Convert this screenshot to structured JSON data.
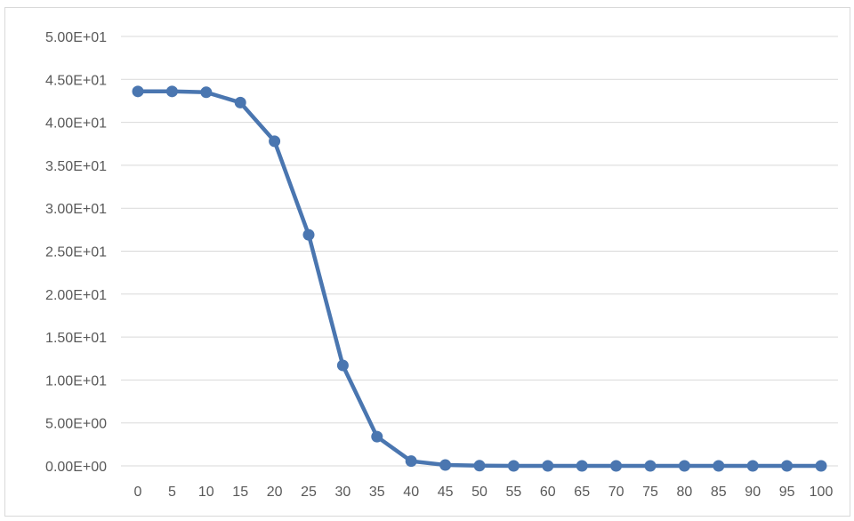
{
  "chart_data": {
    "type": "line",
    "title": "",
    "xlabel": "",
    "ylabel": "",
    "x": [
      0,
      5,
      10,
      15,
      20,
      25,
      30,
      35,
      40,
      45,
      50,
      55,
      60,
      65,
      70,
      75,
      80,
      85,
      90,
      95,
      100
    ],
    "x_tick_labels": [
      "0",
      "5",
      "10",
      "15",
      "20",
      "25",
      "30",
      "35",
      "40",
      "45",
      "50",
      "55",
      "60",
      "65",
      "70",
      "75",
      "80",
      "85",
      "90",
      "95",
      "100"
    ],
    "ylim": [
      0,
      50
    ],
    "y_ticks": [
      0,
      5,
      10,
      15,
      20,
      25,
      30,
      35,
      40,
      45,
      50
    ],
    "y_tick_labels": [
      "0.00E+00",
      "5.00E+00",
      "1.00E+01",
      "1.50E+01",
      "2.00E+01",
      "2.50E+01",
      "3.00E+01",
      "3.50E+01",
      "4.00E+01",
      "4.50E+01",
      "5.00E+01"
    ],
    "grid": true,
    "legend": "none",
    "series": [
      {
        "color": "#4a76b0",
        "values": [
          43.6,
          43.6,
          43.5,
          42.3,
          37.8,
          26.9,
          11.7,
          3.4,
          0.55,
          0.1,
          0.02,
          0.0,
          0.0,
          0.0,
          0.0,
          0.0,
          0.0,
          0.0,
          0.0,
          0.0,
          0.0
        ]
      }
    ],
    "colors": {
      "gridline": "#d9d9d9",
      "tick_text": "#595959",
      "line": "#4a76b0"
    }
  }
}
